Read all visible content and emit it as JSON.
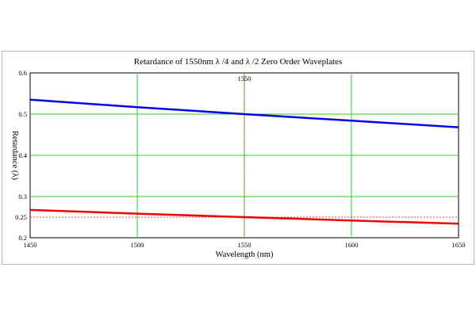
{
  "chart_data": {
    "type": "line",
    "title": "Retardance of 1550nm  λ /4 and λ /2 Zero Order Waveplates",
    "xlabel": "Wavelength (nm)",
    "ylabel": "Retardance (λ)",
    "xlim": [
      1450,
      1650
    ],
    "ylim": [
      0.2,
      0.6
    ],
    "x_ticks": [
      "1450",
      "1500",
      "1550",
      "1600",
      "1650"
    ],
    "y_ticks": [
      "0.2",
      "0.25",
      "0.3",
      "0.4",
      "0.5",
      "0.6"
    ],
    "grid": true,
    "marker_line": {
      "x": 1550,
      "label": "1550"
    },
    "reference_line": {
      "y": 0.25
    },
    "series": [
      {
        "color": "#0000ee",
        "x": [
          1450,
          1500,
          1550,
          1600,
          1650
        ],
        "y": [
          0.535,
          0.517,
          0.5,
          0.484,
          0.468
        ]
      },
      {
        "color": "#ee0000",
        "x": [
          1450,
          1500,
          1550,
          1600,
          1650
        ],
        "y": [
          0.2675,
          0.2585,
          0.25,
          0.242,
          0.234
        ]
      }
    ]
  }
}
